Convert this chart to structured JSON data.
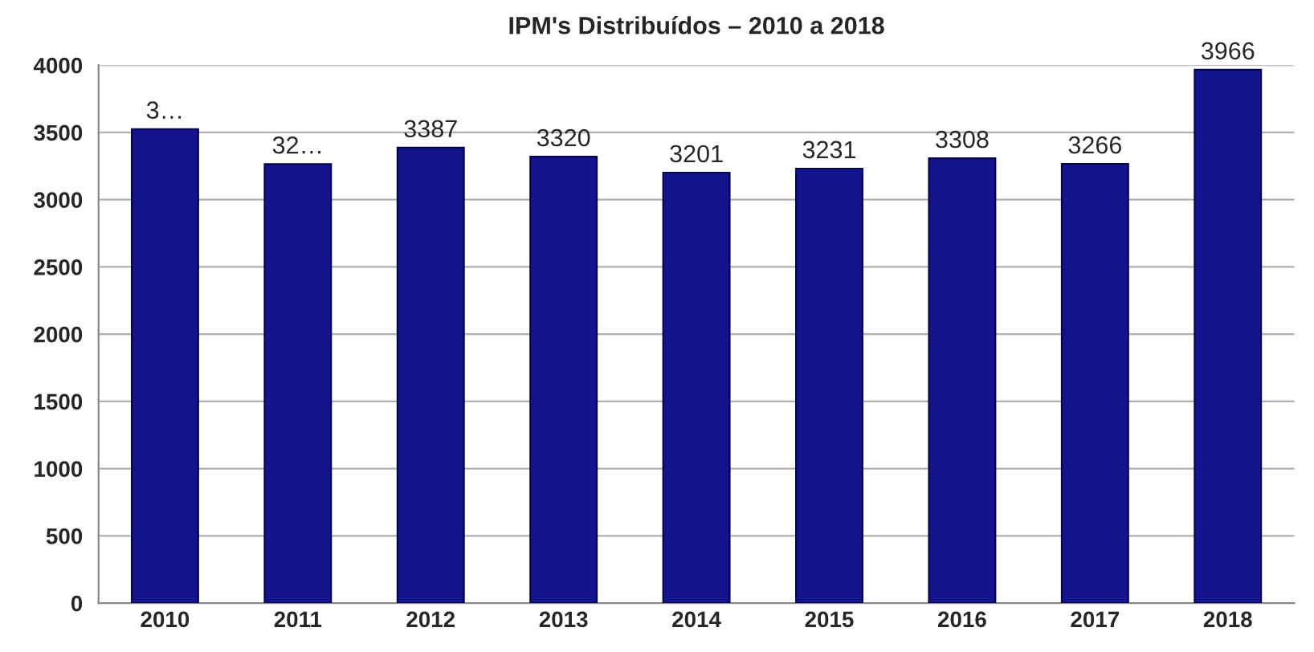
{
  "chart_data": {
    "type": "bar",
    "title": "IPM's Distribuídos – 2010 a 2018",
    "categories": [
      "2010",
      "2011",
      "2012",
      "2013",
      "2014",
      "2015",
      "2016",
      "2017",
      "2018"
    ],
    "values": [
      3525,
      3265,
      3387,
      3320,
      3201,
      3231,
      3308,
      3266,
      3966
    ],
    "value_labels": [
      "3…",
      "32…",
      "3387",
      "3320",
      "3201",
      "3231",
      "3308",
      "3266",
      "3966"
    ],
    "color": "#14148f",
    "ylim": [
      0,
      4000
    ],
    "yticks": [
      0,
      500,
      1000,
      1500,
      2000,
      2500,
      3000,
      3500,
      4000
    ],
    "grid": "y"
  }
}
